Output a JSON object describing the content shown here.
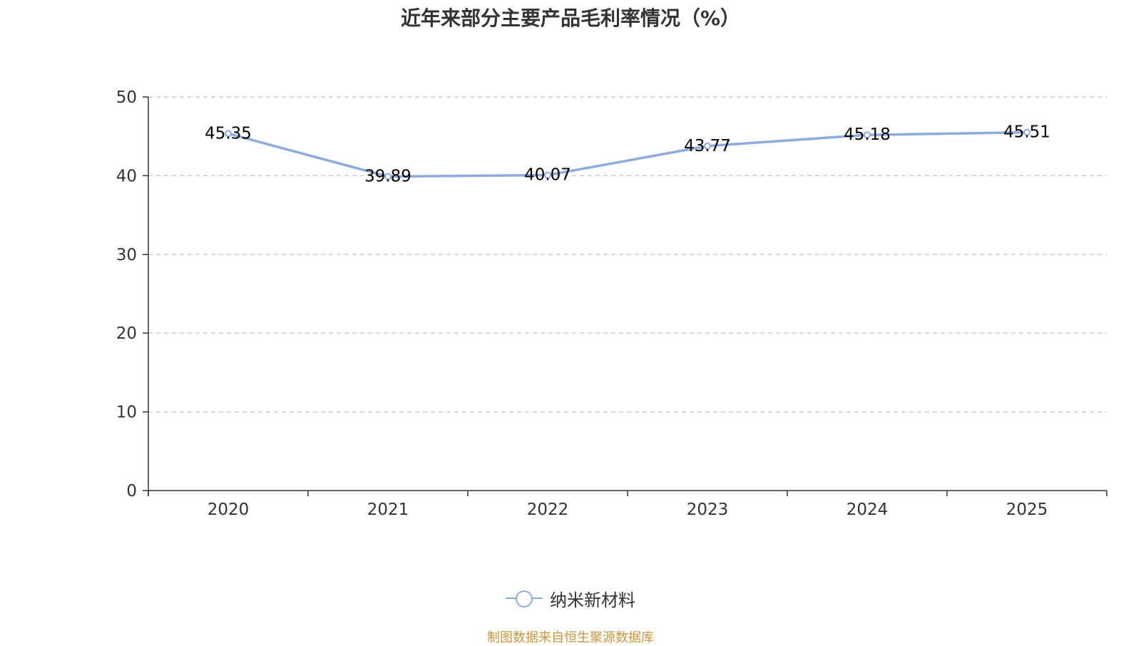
{
  "chart_data": {
    "type": "line",
    "title": "近年来部分主要产品毛利率情况（%）",
    "categories": [
      "2020",
      "2021",
      "2022",
      "2023",
      "2024",
      "2025"
    ],
    "series": [
      {
        "name": "纳米新材料",
        "values": [
          45.35,
          39.89,
          40.07,
          43.77,
          45.18,
          45.51
        ],
        "color": "#8faadc"
      }
    ],
    "ylim": [
      0,
      50
    ],
    "yticks": [
      0,
      10,
      20,
      30,
      40,
      50
    ],
    "grid": true,
    "grid_style": "dashed",
    "legend_position": "bottom",
    "data_labels": true
  },
  "source_note": "制图数据来自恒生聚源数据库",
  "colors": {
    "series": "#8faadc",
    "grid": "#cccccc",
    "axis": "#333333",
    "text": "#333333",
    "source_note": "#c8963e"
  }
}
